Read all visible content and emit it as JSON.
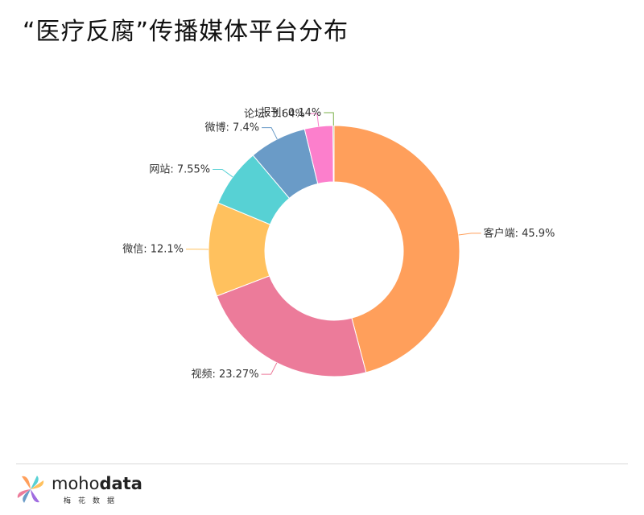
{
  "title": "“医疗反腐”传播媒体平台分布",
  "chart_data": {
    "type": "pie",
    "variant": "donut",
    "categories": [
      "客户端",
      "视频",
      "微信",
      "网站",
      "微博",
      "论坛",
      "报刊"
    ],
    "values": [
      45.9,
      23.27,
      12.1,
      7.55,
      7.4,
      3.64,
      0.14
    ],
    "labels": [
      "客户端: 45.9%",
      "视频: 23.27%",
      "微信: 12.1%",
      "网站: 7.55%",
      "微博: 7.4%",
      "论坛: 3.64%",
      "报刊: 0.14%"
    ],
    "colors": [
      "#FF9F5B",
      "#EC7B9A",
      "#FFC15E",
      "#57D1D4",
      "#6A9BC7",
      "#FC7FCC",
      "#7BB04A"
    ],
    "legend": "none"
  },
  "brand": {
    "name_light": "moho",
    "name_bold": "data",
    "subtitle": "梅花数据"
  }
}
